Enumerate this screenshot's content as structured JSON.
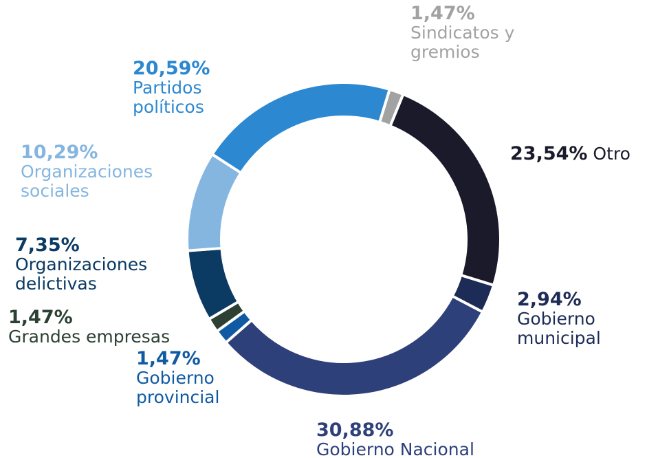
{
  "chart_data": {
    "type": "pie",
    "categories": [
      "Sindicatos y gremios",
      "Otro",
      "Gobierno municipal",
      "Gobierno Nacional",
      "Gobierno provincial",
      "Grandes empresas",
      "Organizaciones delictivas",
      "Organizaciones sociales",
      "Partidos políticos"
    ],
    "values": [
      1.47,
      23.54,
      2.94,
      30.88,
      1.47,
      1.47,
      7.35,
      10.29,
      20.59
    ],
    "value_labels": [
      "1,47%",
      "23,54%",
      "2,94%",
      "30,88%",
      "1,47%",
      "1,47%",
      "7,35%",
      "10,29%",
      "20,59%"
    ],
    "colors": [
      "#a3a2a3",
      "#1b1a2b",
      "#1d2c57",
      "#2d4079",
      "#0f5aa2",
      "#2c4033",
      "#0b3a63",
      "#85b6e0",
      "#2c88d0"
    ],
    "label_colors": [
      "#a3a2a3",
      "#1b1a2b",
      "#1d2c57",
      "#2d4079",
      "#0f5aa2",
      "#2c4033",
      "#0b3a63",
      "#85b6e0",
      "#2c88d0"
    ],
    "donut": true
  }
}
